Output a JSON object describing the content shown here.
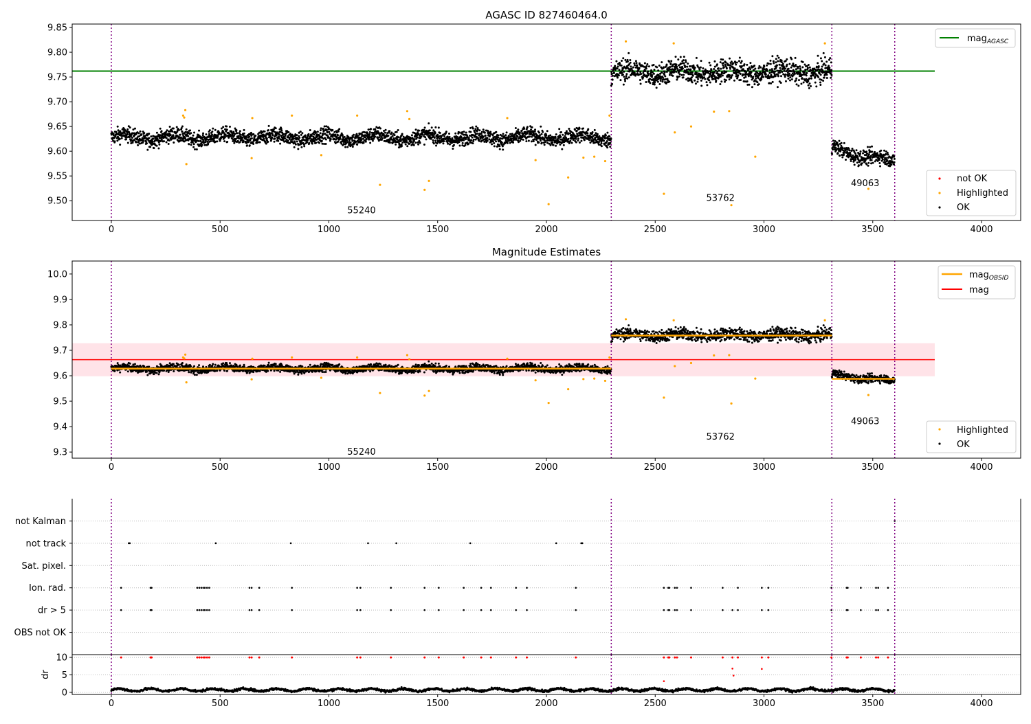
{
  "chart_data": [
    {
      "type": "scatter",
      "title": "AGASC ID 827460464.0",
      "ylim": [
        9.46,
        9.857
      ],
      "xlim": [
        -180,
        4180
      ],
      "yticks": [
        9.5,
        9.55,
        9.6,
        9.65,
        9.7,
        9.75,
        9.8,
        9.85
      ],
      "xticks": [
        0,
        500,
        1000,
        1500,
        2000,
        2500,
        3000,
        3500,
        4000
      ],
      "legend_upper": {
        "placement": "top-right",
        "entries": [
          "mag_AGASC"
        ],
        "mag_label": "mag",
        "mag_sub": "AGASC"
      },
      "legend_lower": {
        "placement": "bottom-right",
        "entries": [
          "not OK",
          "Highlighted",
          "OK"
        ]
      },
      "mag_agasc": 9.762,
      "mag_agasc_xrange": [
        -180,
        3785
      ],
      "obsid_labels": [
        {
          "text": "55240",
          "x": 1150,
          "y": 9.48
        },
        {
          "text": "53762",
          "x": 2800,
          "y": 9.505
        },
        {
          "text": "49063",
          "x": 3465,
          "y": 9.535
        }
      ]
    },
    {
      "type": "scatter",
      "title": "Magnitude Estimates",
      "ylim": [
        9.276,
        10.051
      ],
      "xlim": [
        -180,
        4180
      ],
      "yticks": [
        9.3,
        9.4,
        9.5,
        9.6,
        9.7,
        9.8,
        9.9,
        10.0
      ],
      "xticks": [
        0,
        500,
        1000,
        1500,
        2000,
        2500,
        3000,
        3500,
        4000
      ],
      "legend_upper": {
        "placement": "top-right",
        "entries": [
          "mag_OBSID",
          "mag"
        ],
        "obsid_label": "mag",
        "obsid_sub": "OBSID",
        "mag_label": "mag"
      },
      "legend_lower": {
        "placement": "bottom-right",
        "entries": [
          "Highlighted",
          "OK"
        ]
      },
      "mag": 9.663,
      "mag_band": [
        9.598,
        9.728
      ],
      "mag_xrange": [
        -180,
        3785
      ],
      "mag_obsid": [
        {
          "x": [
            0,
            2298
          ],
          "y": 9.628
        },
        {
          "x": [
            2298,
            3312
          ],
          "y": 9.758
        },
        {
          "x": [
            3312,
            3601
          ],
          "y": 9.588
        }
      ],
      "obsid_labels": [
        {
          "text": "55240",
          "x": 1150,
          "y": 9.3
        },
        {
          "text": "53762",
          "x": 2800,
          "y": 9.36
        },
        {
          "text": "49063",
          "x": 3465,
          "y": 9.42
        }
      ]
    },
    {
      "type": "scatter",
      "title": "",
      "categories": [
        "OBS not OK",
        "dr > 5",
        "Ion. rad.",
        "Sat. pixel.",
        "not track",
        "not Kalman"
      ],
      "flags": {
        "not Kalman": [
          3601
        ],
        "not track": [
          80,
          85,
          480,
          825,
          1180,
          1310,
          1650,
          2045,
          2160,
          2165
        ],
        "Sat. pixel.": [],
        "Ion. rad.": [
          45,
          180,
          185,
          395,
          405,
          415,
          425,
          430,
          440,
          450,
          635,
          645,
          680,
          830,
          1130,
          1145,
          1285,
          1440,
          1505,
          1620,
          1700,
          1745,
          1860,
          1910,
          2135,
          2540,
          2560,
          2565,
          2590,
          2600,
          2665,
          2810,
          2880,
          2990,
          3020,
          3310,
          3380,
          3385,
          3445,
          3515,
          3525,
          3570
        ],
        "dr > 5": [
          45,
          180,
          185,
          395,
          405,
          415,
          425,
          430,
          440,
          450,
          635,
          645,
          680,
          830,
          1130,
          1145,
          1285,
          1440,
          1505,
          1620,
          1700,
          1745,
          1860,
          1910,
          2135,
          2540,
          2560,
          2565,
          2590,
          2600,
          2665,
          2810,
          2855,
          2880,
          2990,
          3020,
          3310,
          3380,
          3385,
          3445,
          3515,
          3525,
          3570
        ],
        "OBS not OK": []
      }
    },
    {
      "type": "scatter",
      "ylabel": "dr",
      "ylim": [
        -0.6,
        10.8
      ],
      "yticks": [
        0,
        5,
        10
      ],
      "xticks": [
        0,
        500,
        1000,
        1500,
        2000,
        2500,
        3000,
        3500,
        4000
      ],
      "dr_outliers": [
        [
          2540,
          3.2
        ],
        [
          2855,
          6.8
        ],
        [
          2860,
          4.8
        ],
        [
          2990,
          6.7
        ]
      ],
      "dr_typical": [
        0.2,
        1.5
      ]
    }
  ],
  "segments": [
    {
      "obsid": "55240",
      "x": [
        0,
        2298
      ],
      "mean": 9.628,
      "std": 0.011
    },
    {
      "obsid": "53762",
      "x": [
        2298,
        3312
      ],
      "mean": 9.76,
      "std": 0.017
    },
    {
      "obsid": "49063",
      "x": [
        3312,
        3601
      ],
      "mean": [
        9.605,
        9.578
      ],
      "std": 0.011
    }
  ],
  "obsid_boundaries": [
    0,
    2298,
    3312,
    3601
  ],
  "highlighted": [
    [
      330,
      9.672
    ],
    [
      335,
      9.668
    ],
    [
      340,
      9.683
    ],
    [
      345,
      9.574
    ],
    [
      645,
      9.586
    ],
    [
      648,
      9.667
    ],
    [
      830,
      9.672
    ],
    [
      965,
      9.592
    ],
    [
      1130,
      9.672
    ],
    [
      1235,
      9.532
    ],
    [
      1360,
      9.681
    ],
    [
      1370,
      9.665
    ],
    [
      1440,
      9.522
    ],
    [
      1460,
      9.54
    ],
    [
      1820,
      9.667
    ],
    [
      1950,
      9.582
    ],
    [
      2010,
      9.493
    ],
    [
      2100,
      9.547
    ],
    [
      2170,
      9.587
    ],
    [
      2220,
      9.589
    ],
    [
      2270,
      9.58
    ],
    [
      2290,
      9.672
    ],
    [
      2365,
      9.822
    ],
    [
      2540,
      9.514
    ],
    [
      2585,
      9.818
    ],
    [
      2590,
      9.638
    ],
    [
      2665,
      9.65
    ],
    [
      2770,
      9.68
    ],
    [
      2840,
      9.681
    ],
    [
      2850,
      9.491
    ],
    [
      2960,
      9.589
    ],
    [
      3280,
      9.818
    ],
    [
      3480,
      9.524
    ]
  ],
  "colors": {
    "ok": "#000000",
    "highlighted": "#ffa500",
    "not_ok": "#ff0000",
    "agasc": "#008000",
    "mag": "#ff0000",
    "obsid": "#ffa500",
    "band": "#ffc0cb",
    "vline": "#800080"
  }
}
